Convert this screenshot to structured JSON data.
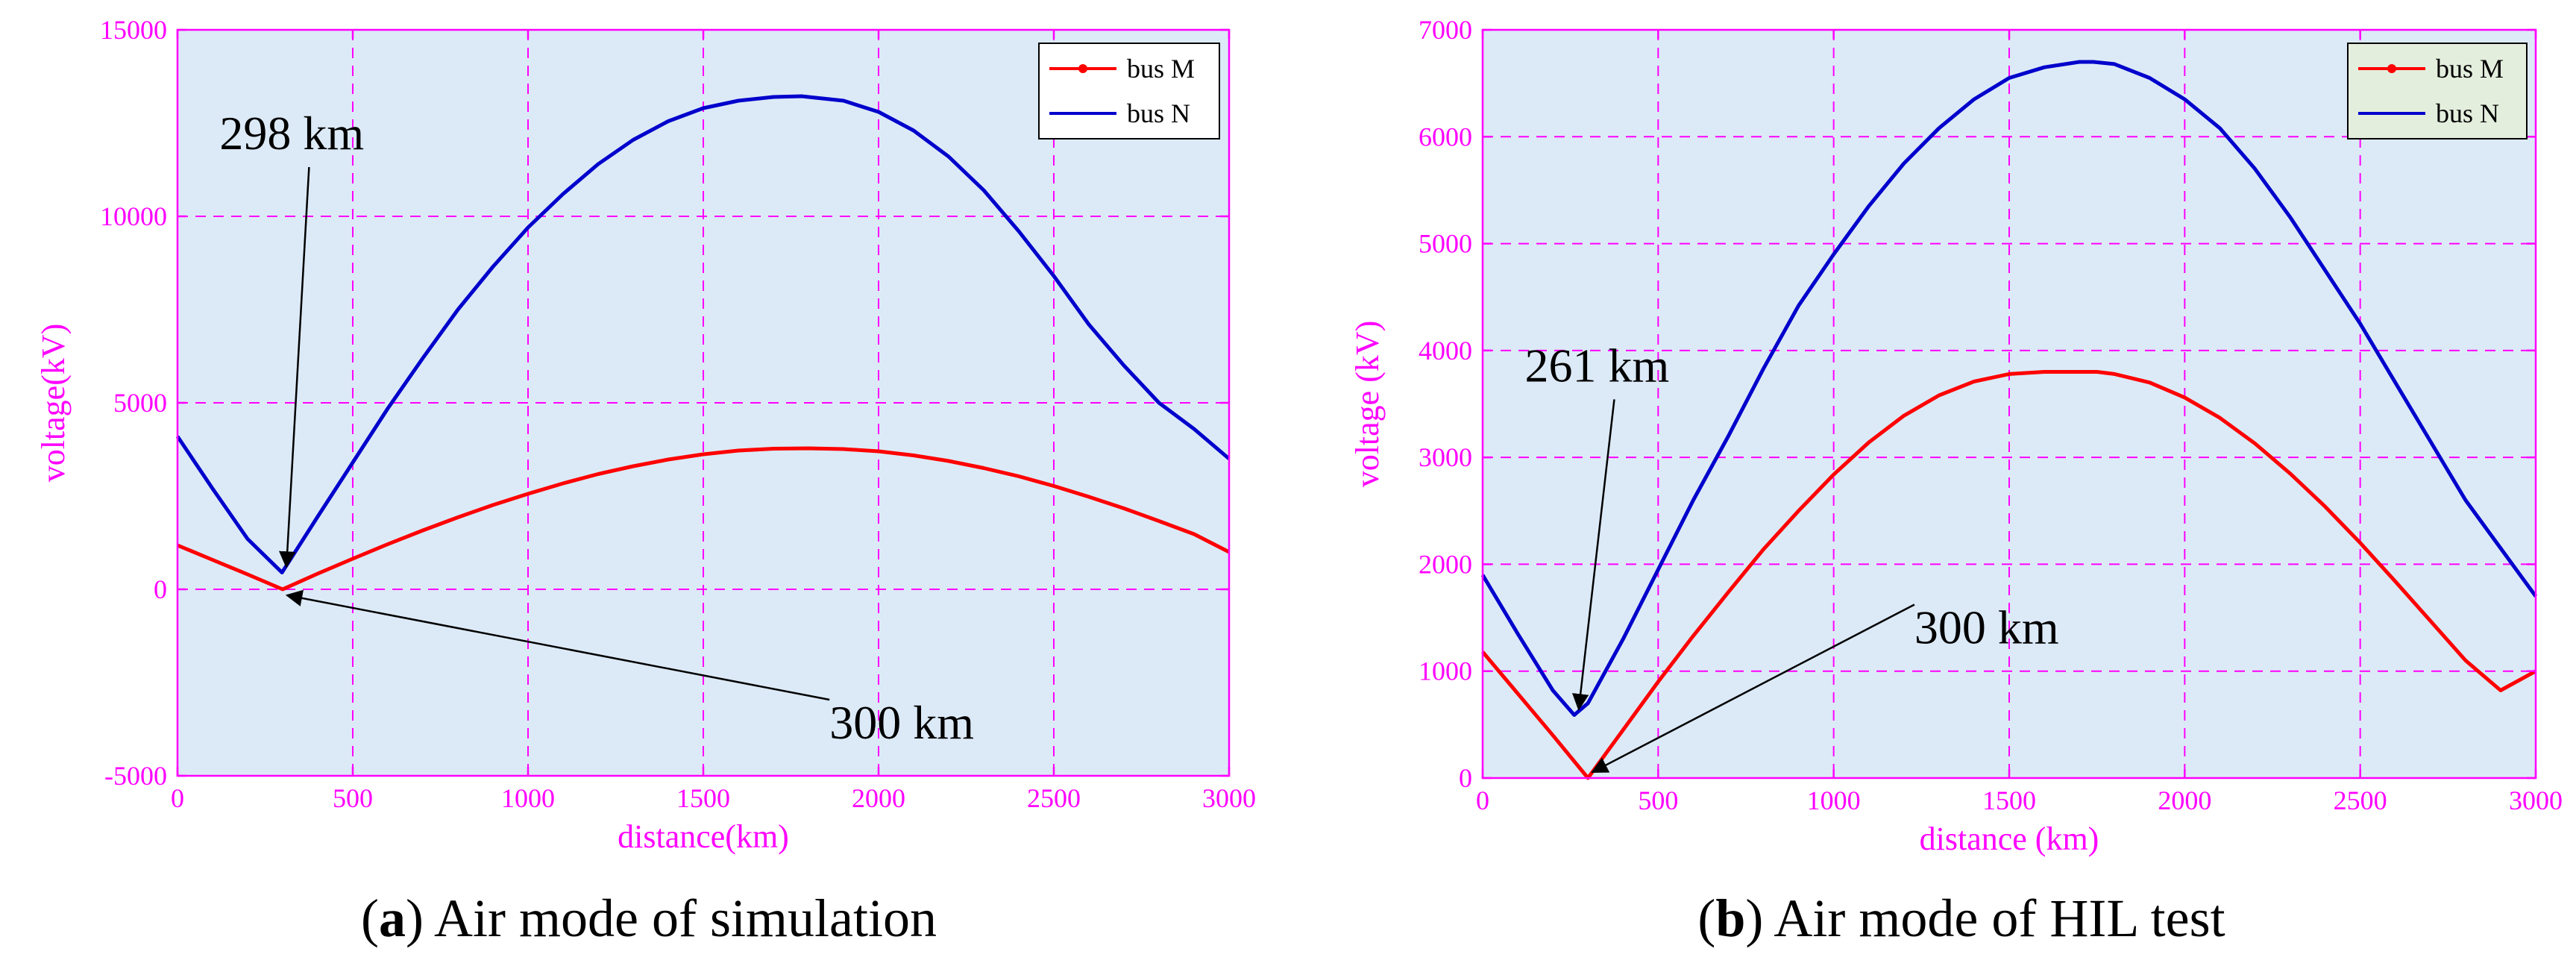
{
  "colors": {
    "axis": "#ff00ff",
    "grid": "#ff00ff",
    "plot_background": "#dceaf7",
    "bus_m": "#ff0000",
    "bus_n": "#0000cc",
    "legend_background_a": "#ffffff",
    "legend_background_b": "#e4eedd",
    "annotation": "#000000"
  },
  "chart_data": [
    {
      "panel_label": "a",
      "caption": "Air mode of simulation",
      "type": "line",
      "xlabel": "distance(km)",
      "ylabel": "voltage(kV)",
      "xlim": [
        0,
        3000
      ],
      "ylim": [
        -5000,
        15000
      ],
      "xticks": [
        0,
        500,
        1000,
        1500,
        2000,
        2500,
        3000
      ],
      "yticks": [
        -5000,
        0,
        5000,
        10000,
        15000
      ],
      "xtick_labels": [
        "0",
        "500",
        "1000",
        "1500",
        "2000",
        "2500",
        "3000"
      ],
      "ytick_labels": [
        "-5000",
        "0",
        "5000",
        "10000",
        "15000"
      ],
      "grid": true,
      "legend_position": "top-right",
      "series": [
        {
          "name": "bus M",
          "color_key": "bus_m",
          "x": [
            0,
            100,
            200,
            300,
            400,
            500,
            600,
            700,
            800,
            900,
            1000,
            1100,
            1200,
            1300,
            1400,
            1500,
            1600,
            1700,
            1800,
            1900,
            2000,
            2100,
            2200,
            2300,
            2400,
            2500,
            2600,
            2700,
            2800,
            2900,
            3000
          ],
          "values": [
            1180,
            790,
            400,
            0,
            420,
            820,
            1210,
            1580,
            1930,
            2260,
            2560,
            2840,
            3090,
            3300,
            3480,
            3620,
            3720,
            3770,
            3780,
            3760,
            3700,
            3590,
            3440,
            3250,
            3030,
            2770,
            2480,
            2170,
            1830,
            1480,
            1000
          ]
        },
        {
          "name": "bus N",
          "color_key": "bus_n",
          "x": [
            0,
            100,
            200,
            298,
            400,
            500,
            600,
            700,
            800,
            900,
            1000,
            1100,
            1200,
            1300,
            1400,
            1500,
            1600,
            1700,
            1780,
            1900,
            2000,
            2100,
            2200,
            2300,
            2400,
            2500,
            2600,
            2700,
            2800,
            2900,
            3000
          ],
          "values": [
            4100,
            2700,
            1350,
            450,
            1950,
            3400,
            4850,
            6200,
            7500,
            8650,
            9700,
            10600,
            11400,
            12050,
            12550,
            12900,
            13100,
            13200,
            13220,
            13100,
            12800,
            12300,
            11600,
            10700,
            9600,
            8400,
            7100,
            6000,
            5000,
            4300,
            3500
          ]
        }
      ],
      "annotations": [
        {
          "text": "298 km",
          "target": [
            298,
            450
          ],
          "label_at": [
            0.04,
            0.16
          ]
        },
        {
          "text": "300 km",
          "target": [
            300,
            0
          ],
          "label_at": [
            0.62,
            0.95
          ]
        }
      ]
    },
    {
      "panel_label": "b",
      "caption": "Air mode of HIL test",
      "type": "line",
      "xlabel": "distance (km)",
      "ylabel": "voltage (kV)",
      "xlim": [
        0,
        3000
      ],
      "ylim": [
        0,
        7000
      ],
      "xticks": [
        0,
        500,
        1000,
        1500,
        2000,
        2500,
        3000
      ],
      "yticks": [
        0,
        1000,
        2000,
        3000,
        4000,
        5000,
        6000,
        7000
      ],
      "xtick_labels": [
        "0",
        "500",
        "1000",
        "1500",
        "2000",
        "2500",
        "3000"
      ],
      "ytick_labels": [
        "0",
        "1000",
        "2000",
        "3000",
        "4000",
        "5000",
        "6000",
        "7000"
      ],
      "grid": true,
      "legend_position": "top-right",
      "series": [
        {
          "name": "bus M",
          "color_key": "bus_m",
          "x": [
            0,
            100,
            200,
            300,
            400,
            500,
            600,
            700,
            800,
            900,
            1000,
            1100,
            1200,
            1300,
            1400,
            1500,
            1600,
            1700,
            1750,
            1800,
            1900,
            2000,
            2100,
            2200,
            2300,
            2400,
            2500,
            2600,
            2700,
            2800,
            2900,
            3000
          ],
          "values": [
            1180,
            790,
            400,
            0,
            450,
            900,
            1330,
            1740,
            2140,
            2500,
            2840,
            3140,
            3390,
            3580,
            3710,
            3780,
            3800,
            3800,
            3800,
            3780,
            3700,
            3560,
            3370,
            3130,
            2850,
            2540,
            2200,
            1840,
            1470,
            1100,
            820,
            1000
          ]
        },
        {
          "name": "bus N",
          "color_key": "bus_n",
          "x": [
            0,
            100,
            200,
            261,
            300,
            400,
            500,
            600,
            700,
            800,
            900,
            1000,
            1100,
            1200,
            1300,
            1400,
            1500,
            1600,
            1700,
            1740,
            1800,
            1900,
            2000,
            2100,
            2200,
            2300,
            2400,
            2500,
            2600,
            2700,
            2800,
            2900,
            3000
          ],
          "values": [
            1900,
            1350,
            820,
            590,
            700,
            1300,
            1950,
            2600,
            3200,
            3830,
            4420,
            4900,
            5350,
            5750,
            6080,
            6350,
            6550,
            6650,
            6700,
            6700,
            6680,
            6550,
            6350,
            6080,
            5700,
            5250,
            4750,
            4250,
            3700,
            3150,
            2600,
            2150,
            1700
          ]
        }
      ],
      "annotations": [
        {
          "text": "261 km",
          "target": [
            261,
            590
          ],
          "label_at": [
            0.04,
            0.47
          ]
        },
        {
          "text": "300 km",
          "target": [
            300,
            0
          ],
          "label_at": [
            0.41,
            0.82
          ]
        }
      ]
    }
  ]
}
